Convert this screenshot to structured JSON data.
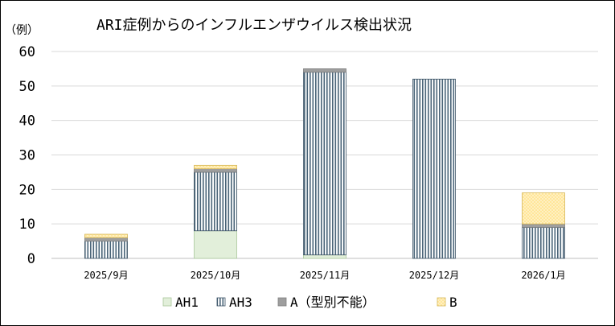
{
  "chart_data": {
    "type": "bar",
    "stacked": true,
    "title": "ARI症例からのインフルエンザウイルス検出状況",
    "ylabel": "（例）",
    "xlabel": "",
    "ylim": [
      0,
      60
    ],
    "yticks": [
      0,
      10,
      20,
      30,
      40,
      50,
      60
    ],
    "grid": true,
    "legend_position": "bottom",
    "categories": [
      "2025/9月",
      "2025/10月",
      "2025/11月",
      "2025/12月",
      "2026/1月"
    ],
    "series": [
      {
        "name": "AH1",
        "values": [
          0,
          8,
          1,
          0,
          0
        ],
        "color": "#e2efda",
        "pattern": "solid"
      },
      {
        "name": "AH3",
        "values": [
          5,
          17,
          53,
          52,
          9
        ],
        "color": "#4a6478",
        "pattern": "vertical-stripes"
      },
      {
        "name": "A（型別不能）",
        "values": [
          1,
          1,
          1,
          0,
          1
        ],
        "color": "#9e9e9e",
        "pattern": "solid"
      },
      {
        "name": "B",
        "values": [
          1,
          1,
          0,
          0,
          9
        ],
        "color": "#ffe699",
        "pattern": "dots"
      }
    ]
  }
}
